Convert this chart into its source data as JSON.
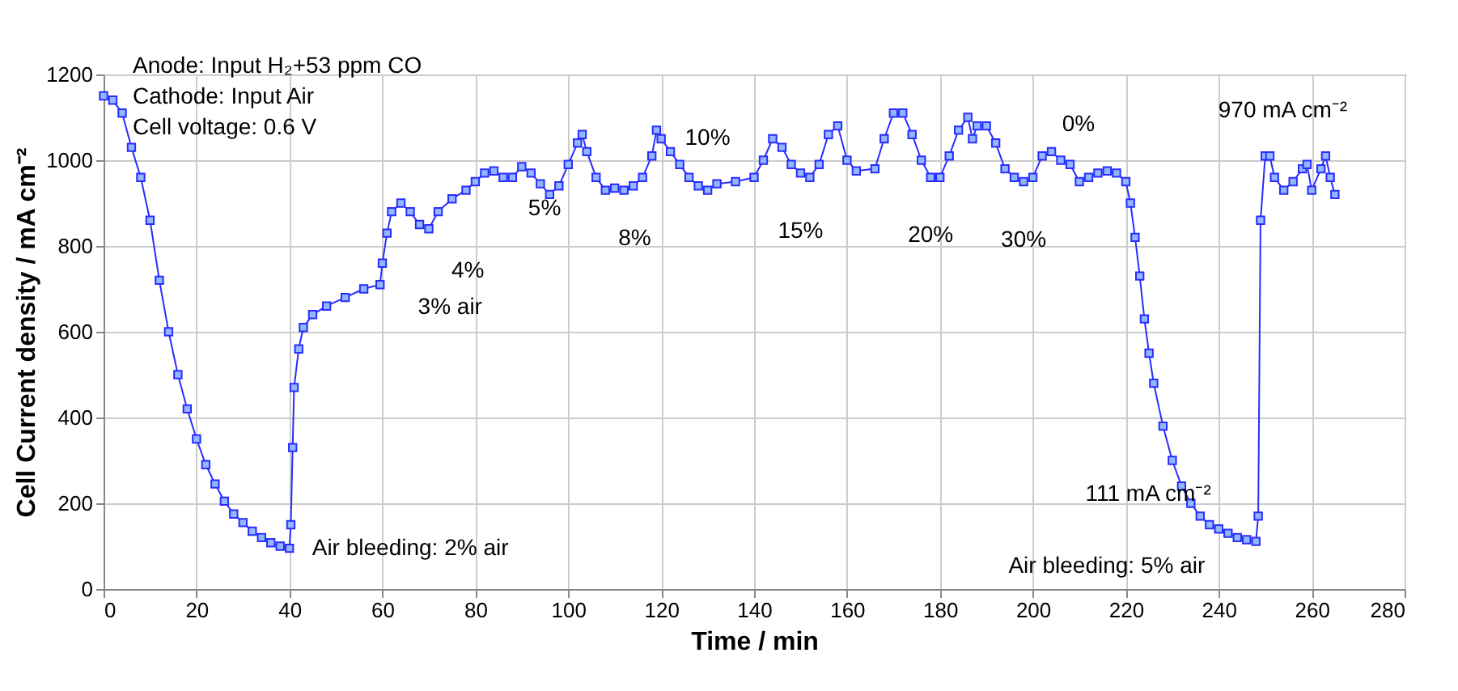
{
  "chart_data": {
    "type": "line",
    "xlabel": "Time / min",
    "ylabel": "Cell Current density / mA cm⁻²",
    "x": [
      0,
      2,
      4,
      6,
      8,
      10,
      12,
      14,
      16,
      18,
      20,
      22,
      24,
      26,
      28,
      30,
      32,
      34,
      36,
      38,
      40,
      40.3,
      40.7,
      41,
      42,
      43,
      45,
      48,
      52,
      56,
      59.5,
      60,
      61,
      62,
      64,
      66,
      68,
      70,
      72,
      75,
      78,
      80,
      82,
      84,
      86,
      88,
      90,
      92,
      94,
      96,
      98,
      100,
      102,
      103,
      104,
      106,
      108,
      110,
      112,
      114,
      116,
      118,
      119,
      120,
      122,
      124,
      126,
      128,
      130,
      132,
      136,
      140,
      142,
      144,
      146,
      148,
      150,
      152,
      154,
      156,
      158,
      160,
      162,
      166,
      168,
      170,
      172,
      174,
      176,
      178,
      180,
      182,
      184,
      186,
      187,
      188,
      190,
      192,
      194,
      196,
      198,
      200,
      202,
      204,
      206,
      208,
      210,
      212,
      214,
      216,
      218,
      220,
      221,
      222,
      223,
      224,
      225,
      226,
      228,
      230,
      232,
      234,
      236,
      238,
      240,
      242,
      244,
      246,
      248,
      248.5,
      249,
      250,
      251,
      252,
      254,
      256,
      258,
      259,
      260,
      262,
      263,
      264,
      265
    ],
    "series": [
      {
        "color": "#2b2bff",
        "values": [
          1150,
          1140,
          1110,
          1030,
          960,
          860,
          720,
          600,
          500,
          420,
          350,
          290,
          245,
          205,
          175,
          155,
          135,
          120,
          108,
          100,
          95,
          150,
          330,
          470,
          560,
          610,
          640,
          660,
          680,
          700,
          710,
          760,
          830,
          880,
          900,
          880,
          850,
          840,
          880,
          910,
          930,
          950,
          970,
          975,
          960,
          960,
          985,
          970,
          945,
          920,
          940,
          990,
          1040,
          1060,
          1020,
          960,
          930,
          935,
          930,
          940,
          960,
          1010,
          1070,
          1050,
          1020,
          990,
          960,
          940,
          930,
          945,
          950,
          960,
          1000,
          1050,
          1030,
          990,
          970,
          960,
          990,
          1060,
          1080,
          1000,
          975,
          980,
          1050,
          1110,
          1110,
          1060,
          1000,
          960,
          960,
          1010,
          1070,
          1100,
          1050,
          1080,
          1080,
          1040,
          980,
          960,
          950,
          960,
          1010,
          1020,
          1000,
          990,
          950,
          960,
          970,
          975,
          970,
          950,
          900,
          820,
          730,
          630,
          550,
          480,
          380,
          300,
          240,
          200,
          170,
          150,
          140,
          130,
          120,
          115,
          111,
          170,
          860,
          1010,
          1010,
          960,
          930,
          950,
          980,
          990,
          930,
          980,
          1010,
          960,
          920
        ]
      }
    ],
    "xlim": [
      0,
      280
    ],
    "xticks": [
      0,
      20,
      40,
      60,
      80,
      100,
      120,
      140,
      160,
      180,
      200,
      220,
      240,
      260,
      280
    ],
    "ylim": [
      0,
      1200
    ],
    "yticks": [
      0,
      200,
      400,
      600,
      800,
      1000,
      1200
    ],
    "grid": true,
    "marker": "square",
    "annotations": [
      "Anode: Input H₂+53 ppm CO\nCathode: Input  Air\nCell voltage: 0.6 V",
      {
        "text": "Air bleeding: 2% air",
        "x": 40,
        "y": 95
      },
      {
        "text": "3% air",
        "x": 60,
        "y": 710
      },
      {
        "text": "4%",
        "x": 70,
        "y": 840
      },
      {
        "text": "5%",
        "x": 90,
        "y": 985
      },
      {
        "text": "8%",
        "x": 108,
        "y": 930
      },
      {
        "text": "10%",
        "x": 130,
        "y": 930
      },
      {
        "text": "15%",
        "x": 150,
        "y": 970
      },
      {
        "text": "20%",
        "x": 178,
        "y": 960
      },
      {
        "text": "30%",
        "x": 198,
        "y": 950
      },
      {
        "text": "0%",
        "x": 214,
        "y": 970
      },
      {
        "text": "970 mA cm⁻²",
        "x": 251,
        "y": 1010
      },
      {
        "text": "111 mA cm⁻²",
        "x": 246,
        "y": 115
      },
      {
        "text": "Air bleeding: 5% air",
        "x": 244,
        "y": 120
      }
    ]
  }
}
